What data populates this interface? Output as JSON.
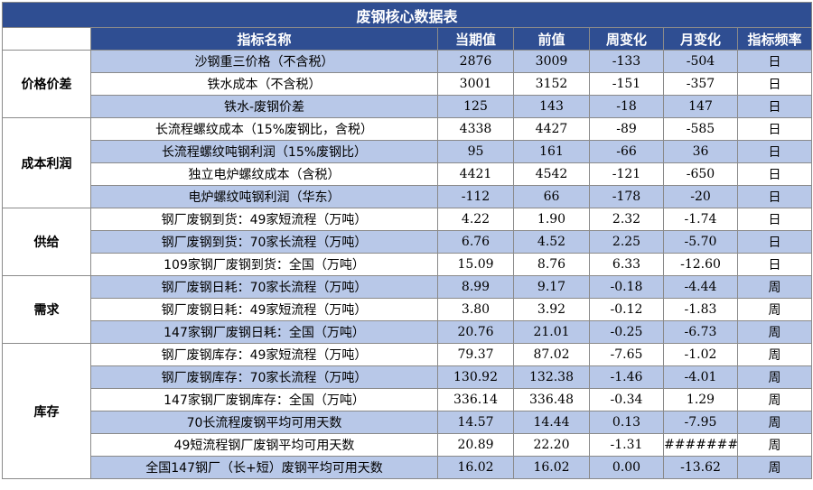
{
  "title": "废钢核心数据表",
  "headers": [
    "",
    "指标名称",
    "当期值",
    "前值",
    "周变化",
    "月变化",
    "指标频率"
  ],
  "groups": [
    {
      "category": "价格价差",
      "rows": [
        {
          "name": "沙钢重三价格（不含税）",
          "current": "2876",
          "previous": "3009",
          "weekly": "-133",
          "monthly": "-504",
          "freq": "日"
        },
        {
          "name": "铁水成本（不含税）",
          "current": "3001",
          "previous": "3152",
          "weekly": "-151",
          "monthly": "-357",
          "freq": "日"
        },
        {
          "name": "铁水-废钢价差",
          "current": "125",
          "previous": "143",
          "weekly": "-18",
          "monthly": "147",
          "freq": "日"
        }
      ]
    },
    {
      "category": "成本利润",
      "rows": [
        {
          "name": "长流程螺纹成本（15%废钢比，含税）",
          "current": "4338",
          "previous": "4427",
          "weekly": "-89",
          "monthly": "-585",
          "freq": "日"
        },
        {
          "name": "长流程螺纹吨钢利润（15%废钢比）",
          "current": "95",
          "previous": "161",
          "weekly": "-66",
          "monthly": "36",
          "freq": "日"
        },
        {
          "name": "独立电炉螺纹成本（含税）",
          "current": "4421",
          "previous": "4542",
          "weekly": "-121",
          "monthly": "-650",
          "freq": "日"
        },
        {
          "name": "电炉螺纹吨钢利润（华东）",
          "current": "-112",
          "previous": "66",
          "weekly": "-178",
          "monthly": "-20",
          "freq": "日"
        }
      ]
    },
    {
      "category": "供给",
      "rows": [
        {
          "name": "钢厂废钢到货：49家短流程（万吨）",
          "current": "4.22",
          "previous": "1.90",
          "weekly": "2.32",
          "monthly": "-1.74",
          "freq": "日"
        },
        {
          "name": "钢厂废钢到货：70家长流程（万吨）",
          "current": "6.76",
          "previous": "4.52",
          "weekly": "2.25",
          "monthly": "-5.70",
          "freq": "日"
        },
        {
          "name": "109家钢厂废钢到货：全国（万吨）",
          "current": "15.09",
          "previous": "8.76",
          "weekly": "6.33",
          "monthly": "-12.60",
          "freq": "日"
        }
      ]
    },
    {
      "category": "需求",
      "rows": [
        {
          "name": "钢厂废钢日耗：70家长流程（万吨）",
          "current": "8.99",
          "previous": "9.17",
          "weekly": "-0.18",
          "monthly": "-4.44",
          "freq": "周"
        },
        {
          "name": "钢厂废钢日耗：49家短流程（万吨）",
          "current": "3.80",
          "previous": "3.92",
          "weekly": "-0.12",
          "monthly": "-1.83",
          "freq": "周"
        },
        {
          "name": "147家钢厂废钢日耗：全国（万吨）",
          "current": "20.76",
          "previous": "21.01",
          "weekly": "-0.25",
          "monthly": "-6.73",
          "freq": "周"
        }
      ]
    },
    {
      "category": "库存",
      "rows": [
        {
          "name": "钢厂废钢库存：49家短流程（万吨）",
          "current": "79.37",
          "previous": "87.02",
          "weekly": "-7.65",
          "monthly": "-1.02",
          "freq": "周"
        },
        {
          "name": "钢厂废钢库存：70家长流程（万吨）",
          "current": "130.92",
          "previous": "132.38",
          "weekly": "-1.46",
          "monthly": "-4.01",
          "freq": "周"
        },
        {
          "name": "147家钢厂废钢库存：全国（万吨）",
          "current": "336.14",
          "previous": "336.48",
          "weekly": "-0.34",
          "monthly": "1.29",
          "freq": "周"
        },
        {
          "name": "70长流程废钢平均可用天数",
          "current": "14.57",
          "previous": "14.44",
          "weekly": "0.13",
          "monthly": "-7.95",
          "freq": "周"
        },
        {
          "name": "49短流程钢厂废钢平均可用天数",
          "current": "20.89",
          "previous": "22.20",
          "weekly": "-1.31",
          "monthly": "#######",
          "freq": "周"
        },
        {
          "name": "全国147钢厂（长+短）废钢平均可用天数",
          "current": "16.02",
          "previous": "16.02",
          "weekly": "0.00",
          "monthly": "-13.62",
          "freq": "周"
        }
      ]
    }
  ],
  "colors": {
    "header_bg": "#2f4e92",
    "header_text": "#ffffff",
    "stripe": "#b8c8e8",
    "border": "#8a8a8a"
  }
}
